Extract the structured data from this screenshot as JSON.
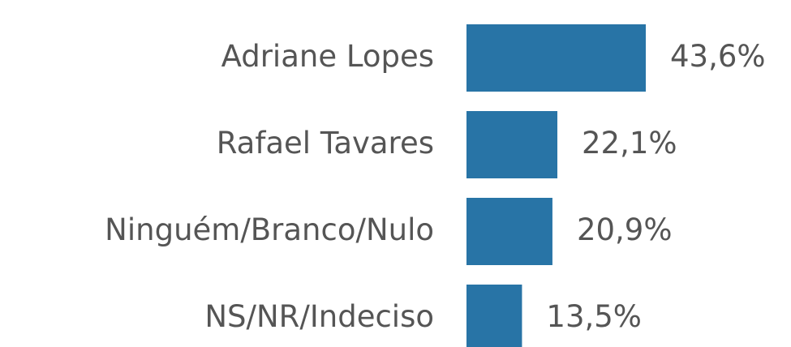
{
  "chart_data": {
    "type": "bar",
    "orientation": "horizontal",
    "categories": [
      "Adriane Lopes",
      "Rafael Tavares",
      "Ninguém/Branco/Nulo",
      "NS/NR/Indeciso"
    ],
    "values": [
      43.6,
      22.1,
      20.9,
      13.5
    ],
    "value_labels": [
      "43,6%",
      "22,1%",
      "20,9%",
      "13,5%"
    ],
    "color": "#2874a6"
  }
}
